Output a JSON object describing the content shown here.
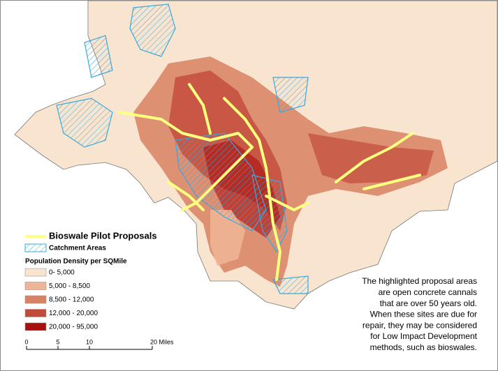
{
  "legend": {
    "bioswale": {
      "label": "Bioswale Pilot Proposals",
      "color": "#ffff80"
    },
    "catchment": {
      "label": "Catchment Areas",
      "color": "#3aa8dc"
    },
    "density_title": "Population Density per SQMile",
    "classes": [
      {
        "label": "0- 5,000",
        "color": "#fbe4cf"
      },
      {
        "label": "5,000 - 8,500",
        "color": "#eeb596"
      },
      {
        "label": "8,500 - 12,000",
        "color": "#d98163"
      },
      {
        "label": "12,000 - 20,000",
        "color": "#c24a3a"
      },
      {
        "label": "20,000 - 95,000",
        "color": "#a80f0f"
      }
    ]
  },
  "scale_bar": {
    "ticks": [
      0,
      5,
      10,
      {
        "value": 20,
        "label": "20 Miles"
      }
    ]
  },
  "annotation": [
    "The highlighted proposal areas",
    "are open concrete cannals",
    "that are over 50 years old.",
    "When these sites are due for",
    "repair, they may be considered",
    "for Low Impact Development",
    "methods, such as bioswales."
  ]
}
